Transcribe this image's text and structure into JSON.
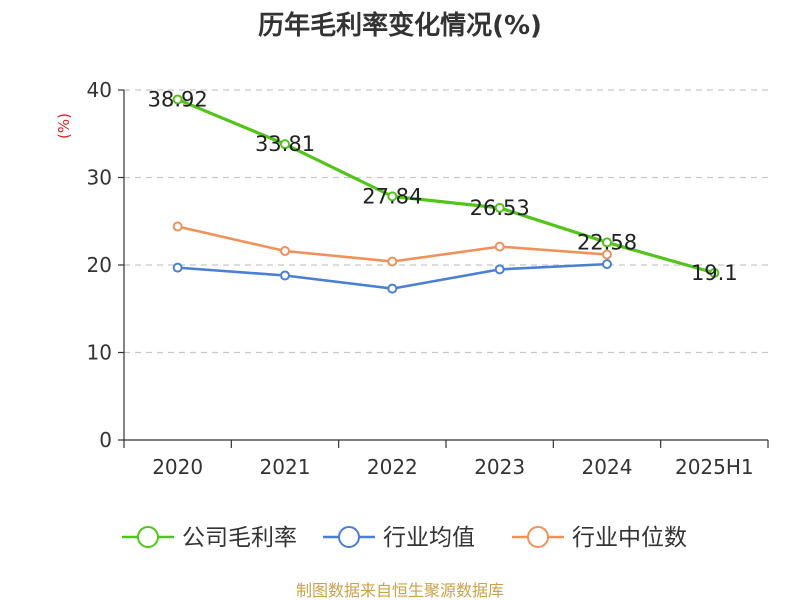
{
  "chart_data": {
    "type": "line",
    "title": "历年毛利率变化情况(%)",
    "ylabel": "(%)",
    "categories": [
      "2020",
      "2021",
      "2022",
      "2023",
      "2024",
      "2025H1"
    ],
    "yticks": [
      "0",
      "10",
      "20",
      "30",
      "40"
    ],
    "ylim": [
      0,
      40
    ],
    "grid": true,
    "legend_position": "bottom",
    "series": [
      {
        "name": "公司毛利率",
        "color": "#52c41a",
        "values": [
          38.92,
          33.81,
          27.84,
          26.53,
          22.58,
          19.1
        ],
        "labels": [
          "38.92",
          "33.81",
          "27.84",
          "26.53",
          "22.58",
          "19.1"
        ]
      },
      {
        "name": "行业均值",
        "color": "#4a7fd4",
        "values": [
          19.7,
          18.8,
          17.3,
          19.5,
          20.1,
          null
        ]
      },
      {
        "name": "行业中位数",
        "color": "#f2905a",
        "values": [
          24.4,
          21.6,
          20.4,
          22.1,
          21.2,
          null
        ]
      }
    ],
    "source": "制图数据来自恒生聚源数据库"
  }
}
